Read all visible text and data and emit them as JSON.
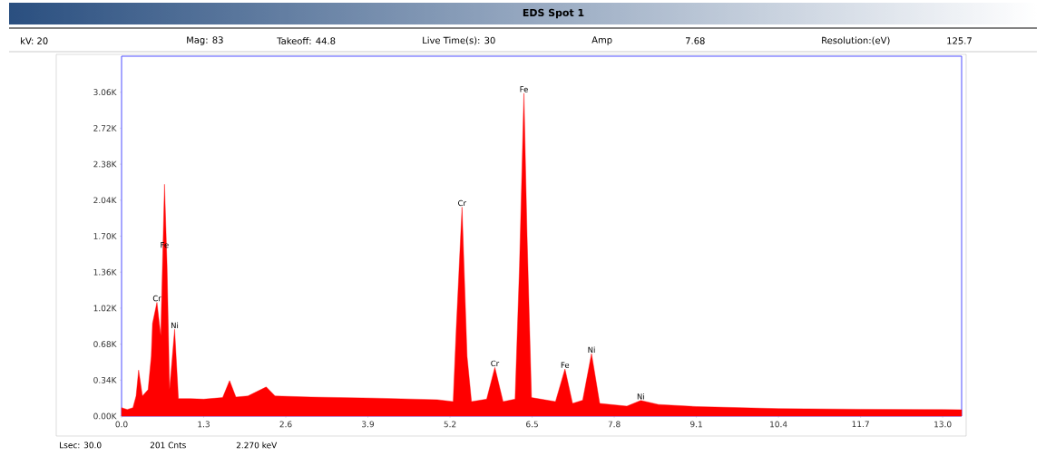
{
  "chart_data": {
    "type": "area",
    "title": "EDS Spot 1",
    "annotations": [
      "kV: 20",
      "Mag: 83",
      "Takeoff: 44.8",
      "Live Time(s): 30",
      "Amp",
      "7.68",
      "Resolution:(eV)",
      "125.7",
      "Lsec: 30.0",
      "201 Cnts",
      "2.270 keV",
      {
        "text": "Cr",
        "x": 0.56,
        "y": 1075
      },
      {
        "text": "Fe",
        "x": 0.68,
        "y": 1580
      },
      {
        "text": "Ni",
        "x": 0.84,
        "y": 820
      },
      {
        "text": "Cr",
        "x": 5.39,
        "y": 1975
      },
      {
        "text": "Cr",
        "x": 5.91,
        "y": 460
      },
      {
        "text": "Fe",
        "x": 6.37,
        "y": 3050
      },
      {
        "text": "Fe",
        "x": 7.02,
        "y": 445
      },
      {
        "text": "Ni",
        "x": 7.44,
        "y": 590
      },
      {
        "text": "Ni",
        "x": 8.22,
        "y": 148
      }
    ],
    "x": [
      0.0,
      0.09,
      0.18,
      0.23,
      0.27,
      0.33,
      0.42,
      0.47,
      0.49,
      0.56,
      0.62,
      0.68,
      0.72,
      0.76,
      0.84,
      0.9,
      1.09,
      1.3,
      1.6,
      1.71,
      1.81,
      2.0,
      2.29,
      2.43,
      3.0,
      4.0,
      5.0,
      5.25,
      5.3,
      5.39,
      5.47,
      5.54,
      5.78,
      5.91,
      6.04,
      6.23,
      6.3,
      6.37,
      6.42,
      6.49,
      6.87,
      7.02,
      7.14,
      7.3,
      7.44,
      7.57,
      8.0,
      8.22,
      8.5,
      9.1,
      10.4,
      11.7,
      13.0,
      13.3
    ],
    "series": [
      {
        "color": "#ff0000",
        "values": [
          80,
          62,
          80,
          190,
          435,
          190,
          250,
          565,
          875,
          1075,
          760,
          2190,
          1420,
          250,
          820,
          165,
          165,
          160,
          175,
          335,
          180,
          190,
          275,
          190,
          180,
          170,
          155,
          137,
          845,
          1975,
          565,
          137,
          160,
          460,
          137,
          160,
          1420,
          3050,
          1700,
          175,
          137,
          445,
          120,
          150,
          590,
          120,
          94,
          148,
          110,
          90,
          71,
          65,
          62,
          60
        ]
      }
    ],
    "xlim": [
      0,
      13.3
    ],
    "ylim": [
      0,
      3400
    ],
    "xticks": [
      {
        "value": 0,
        "label": "0.0"
      },
      1.3,
      2.6,
      3.9,
      5.2,
      6.5,
      7.8,
      9.1,
      10.4,
      11.7,
      {
        "value": 13,
        "label": "13.0"
      }
    ],
    "yticks": [
      {
        "value": 0,
        "label": "0.00K"
      },
      {
        "value": 340,
        "label": "0.34K"
      },
      {
        "value": 680,
        "label": "0.68K"
      },
      {
        "value": 1020,
        "label": "1.02K"
      },
      {
        "value": 1360,
        "label": "1.36K"
      },
      {
        "value": 1700,
        "label": "1.70K"
      },
      {
        "value": 2040,
        "label": "2.04K"
      },
      {
        "value": 2380,
        "label": "2.38K"
      },
      {
        "value": 2720,
        "label": "2.72K"
      },
      {
        "value": 3060,
        "label": "3.06K"
      }
    ]
  }
}
